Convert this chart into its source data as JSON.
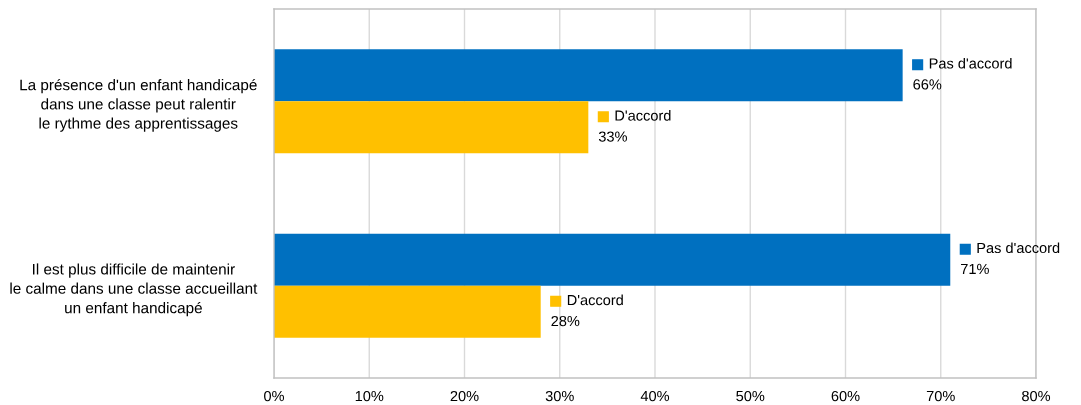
{
  "chart_data": {
    "type": "bar",
    "orientation": "horizontal",
    "categories": [
      "La présence d'un enfant handicapé\ndans une classe peut ralentir\nle rythme des apprentissages",
      "Il est plus difficile de maintenir\nle calme dans une classe accueillant\nun enfant handicapé"
    ],
    "series": [
      {
        "name": "Pas d'accord",
        "color": "#0070c0",
        "values": [
          66,
          71
        ],
        "value_labels": [
          "66%",
          "71%"
        ]
      },
      {
        "name": "D'accord",
        "color": "#ffc000",
        "values": [
          33,
          28
        ],
        "value_labels": [
          "33%",
          "28%"
        ]
      }
    ],
    "xlim": [
      0,
      80
    ],
    "xticks": [
      {
        "value": 0,
        "label": "0%"
      },
      {
        "value": 10,
        "label": "10%"
      },
      {
        "value": 20,
        "label": "20%"
      },
      {
        "value": 30,
        "label": "30%"
      },
      {
        "value": 40,
        "label": "40%"
      },
      {
        "value": 50,
        "label": "50%"
      },
      {
        "value": 60,
        "label": "60%"
      },
      {
        "value": 70,
        "label": "70%"
      },
      {
        "value": 80,
        "label": "80%"
      }
    ],
    "grid": "x",
    "legend": "right"
  }
}
